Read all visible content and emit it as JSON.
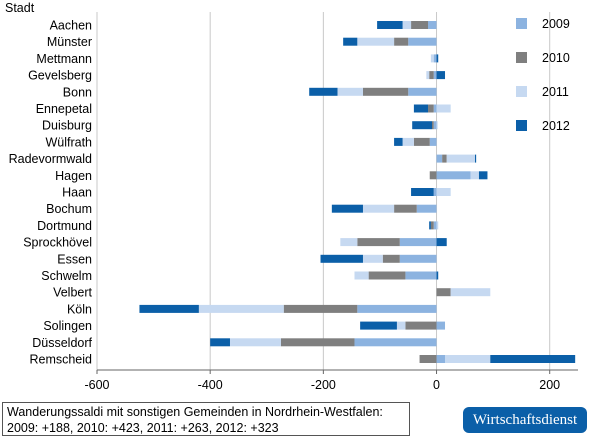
{
  "chart_data": {
    "type": "bar",
    "stacked": true,
    "orientation": "horizontal",
    "title": "",
    "ylabel": "Stadt",
    "xlabel": "",
    "xlim": [
      -600,
      250
    ],
    "xticks": [
      -600,
      -400,
      -200,
      0,
      200
    ],
    "grid": "vertical",
    "legend_position": "right",
    "categories": [
      "Aachen",
      "Münster",
      "Mettmann",
      "Gevelsberg",
      "Bonn",
      "Ennepetal",
      "Duisburg",
      "Wülfrath",
      "Radevormwald",
      "Hagen",
      "Haan",
      "Bochum",
      "Dortmund",
      "Sprockhövel",
      "Essen",
      "Schwelm",
      "Velbert",
      "Köln",
      "Solingen",
      "Düsseldorf",
      "Remscheid"
    ],
    "series": [
      {
        "name": "2009",
        "color": "#8cb3e0",
        "values": [
          -15,
          -50,
          -5,
          -5,
          -50,
          -5,
          -5,
          -12,
          10,
          60,
          -5,
          -35,
          -5,
          -65,
          -65,
          -55,
          0,
          -140,
          15,
          -145,
          15
        ]
      },
      {
        "name": "2010",
        "color": "#7f7f7f",
        "values": [
          -30,
          -25,
          0,
          -8,
          -80,
          -10,
          -3,
          -28,
          8,
          -12,
          0,
          -40,
          -5,
          -75,
          -30,
          -65,
          25,
          -130,
          -55,
          -130,
          -30
        ]
      },
      {
        "name": "2011",
        "color": "#c6d9f1",
        "values": [
          -15,
          -65,
          -5,
          -5,
          -45,
          25,
          2,
          -20,
          50,
          15,
          25,
          -55,
          3,
          -30,
          -35,
          -25,
          70,
          -150,
          -15,
          -90,
          80
        ]
      },
      {
        "name": "2012",
        "color": "#0b5fa8",
        "values": [
          -45,
          -25,
          3,
          15,
          -50,
          -25,
          -35,
          -15,
          2,
          15,
          -40,
          -55,
          -3,
          18,
          -75,
          3,
          0,
          -105,
          -65,
          -35,
          150
        ]
      }
    ]
  },
  "note": {
    "line1": "Wanderungssaldi mit sonstigen Gemeinden in Nordrhein-Westfalen:",
    "line2": "2009: +188, 2010: +423, 2011: +263, 2012: +323"
  },
  "brand": "Wirtschaftsdienst"
}
